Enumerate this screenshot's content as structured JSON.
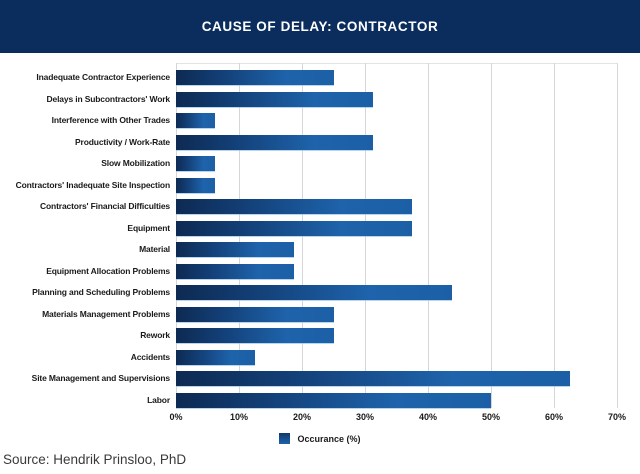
{
  "header": {
    "title": "CAUSE OF DELAY: CONTRACTOR"
  },
  "chart_data": {
    "type": "bar",
    "orientation": "horizontal",
    "title": "CAUSE OF DELAY: CONTRACTOR",
    "categories": [
      "Inadequate Contractor Experience",
      "Delays in Subcontractors' Work",
      "Interference with Other Trades",
      "Productivity / Work-Rate",
      "Slow Mobilization",
      "Contractors' Inadequate Site Inspection",
      "Contractors' Financial Difficulties",
      "Equipment",
      "Material",
      "Equipment Allocation Problems",
      "Planning and Scheduling Problems",
      "Materials Management Problems",
      "Rework",
      "Accidents",
      "Site Management and Supervisions",
      "Labor"
    ],
    "values": [
      25,
      31.25,
      6.25,
      31.25,
      6.25,
      6.25,
      37.5,
      37.5,
      18.75,
      18.75,
      43.75,
      25,
      25,
      12.5,
      62.5,
      50
    ],
    "unit": "%",
    "legend": "Occurance (%)",
    "legend_position": "bottom-center",
    "xlabel": "",
    "ylabel": "",
    "xlim": [
      0,
      70
    ],
    "x_ticks": [
      "0%",
      "10%",
      "20%",
      "30%",
      "40%",
      "50%",
      "60%",
      "70%"
    ],
    "grid": "vertical"
  },
  "source": {
    "text": "Source: Hendrik Prinsloo, PhD"
  },
  "colors": {
    "header_bg": "#0a2d5e",
    "title_text": "#ffffff",
    "bar_gradient_start": "#0d2a52",
    "bar_gradient_end": "#1e63ab",
    "gridline": "#d6d6d6",
    "label_text": "#1a1a1a",
    "source_text": "#3a3a3a",
    "background": "#ffffff"
  }
}
